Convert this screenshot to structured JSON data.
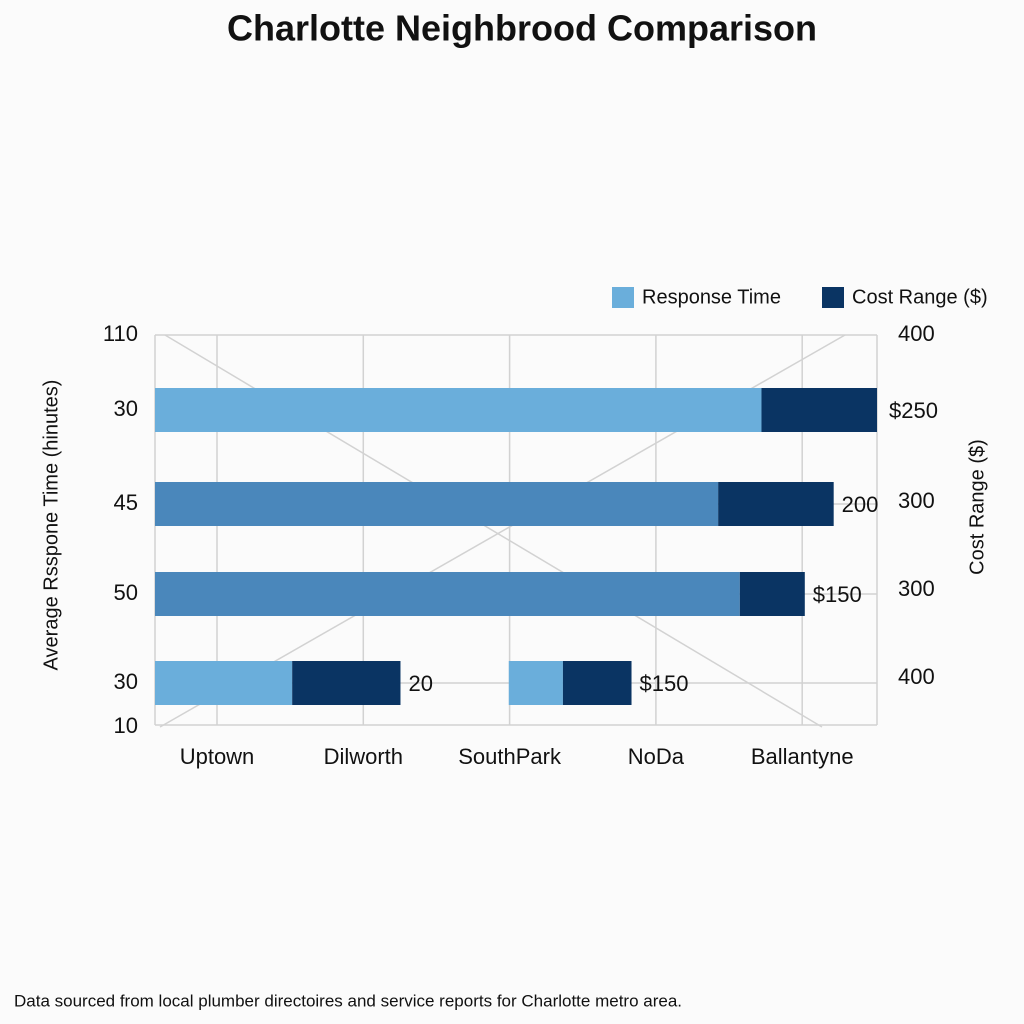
{
  "chart_data": {
    "type": "bar",
    "orientation": "horizontal",
    "title": "Charlotte Neighbrood Comparison",
    "ylabel": "Average Rsspone Time (hinutes)",
    "y2label": "Cost Range ($)",
    "categories": [
      "Uptown",
      "Dilworth",
      "SouthPark",
      "NoDa",
      "Ballantyne"
    ],
    "y_labels": [
      "110",
      "30",
      "45",
      "50",
      "30",
      "10"
    ],
    "y2_labels": [
      "400",
      "300",
      "300",
      "400"
    ],
    "xlim": [
      0,
      100
    ],
    "series": [
      {
        "name": "Response Time",
        "color": "#6aaedb",
        "colors": [
          "#6aaedb",
          "#4a87bb",
          "#4a87bb",
          "#6aaedb",
          "#6aaedb"
        ],
        "values": [
          84,
          78,
          81,
          19,
          7.5
        ]
      },
      {
        "name": "Cost Range ($)",
        "color": "#0a3463",
        "values": [
          16,
          16,
          9,
          15,
          9.5
        ]
      }
    ],
    "bar_rows": [
      0,
      1,
      2,
      3,
      3
    ],
    "bar_starts": [
      0,
      0,
      0,
      0,
      49
    ],
    "bar_labels": [
      "$250",
      "200",
      "$150",
      "20",
      "$150"
    ],
    "grid": true,
    "legend": "top-right",
    "footnote": "Data sourced from local plumber directoires and service reports for Charlotte metro area."
  }
}
